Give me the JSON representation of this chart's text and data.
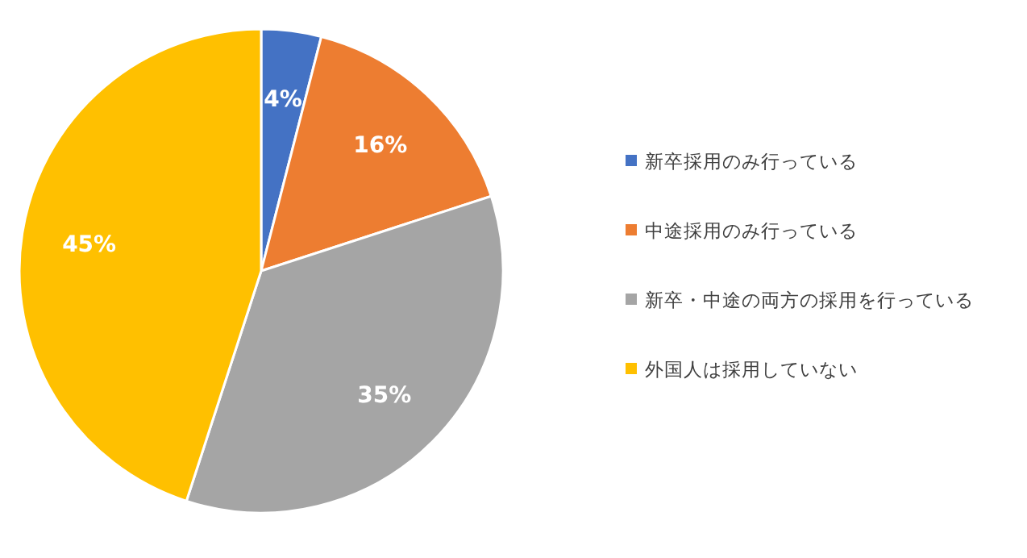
{
  "chart_data": {
    "type": "pie",
    "categories": [
      "新卒採用のみ行っている",
      "中途採用のみ行っている",
      "新卒・中途の両方の採用を行っている",
      "外国人は採用していない"
    ],
    "values": [
      4,
      16,
      35,
      45
    ],
    "value_labels": [
      "4%",
      "16%",
      "35%",
      "45%"
    ],
    "colors": [
      "#4472c4",
      "#ed7d31",
      "#a5a5a5",
      "#ffc000"
    ],
    "legend": "right"
  }
}
